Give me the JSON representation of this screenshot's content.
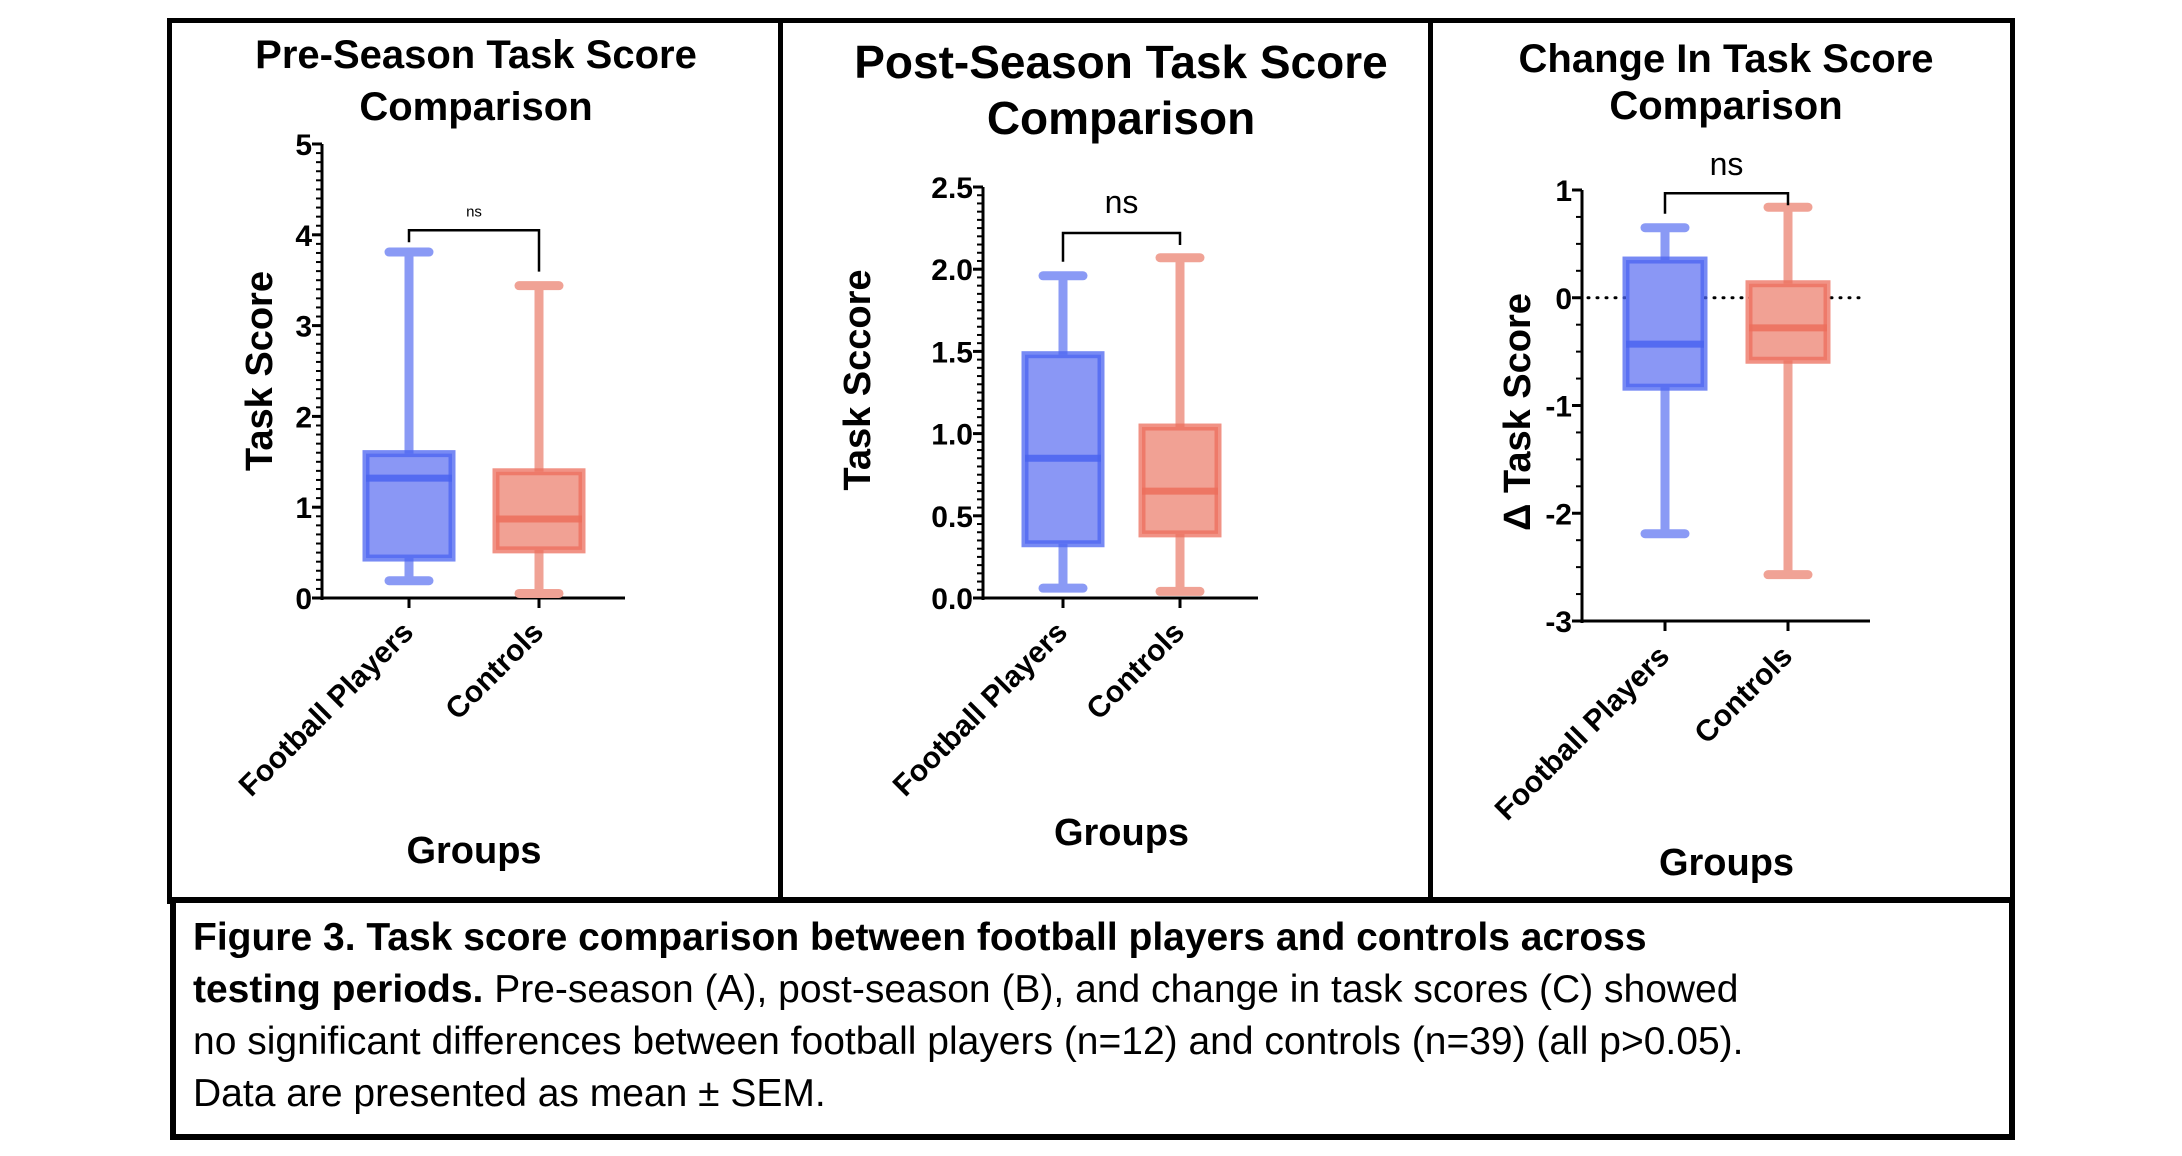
{
  "figure": {
    "caption_bold": "Figure 3. Task score comparison between football players and controls across testing periods.",
    "caption_line1": "Figure 3. Task score comparison between football players and controls across",
    "caption_line2_bold": "testing periods.",
    "caption_line2_rest": " Pre-season (A), post-season (B), and change in task scores (C) showed",
    "caption_line3": "no significant differences between football players (n=12) and controls (n=39) (all p>0.05).",
    "caption_line4": "Data are presented as mean ± SEM."
  },
  "colors": {
    "football_fill": "#8a97f5",
    "football_stroke": "#4a63f0",
    "football_whisker": "#8a9af5",
    "controls_fill": "#f1a194",
    "controls_stroke": "#ec6e5c",
    "controls_whisker": "#f0a295"
  },
  "chart_data": [
    {
      "type": "box",
      "panel": "A",
      "title_lines": [
        "Pre-Season Task Score",
        "Comparison"
      ],
      "xlabel": "Groups",
      "ylabel": "Task Score",
      "ylim": [
        0,
        5
      ],
      "yticks": [
        0,
        1,
        2,
        3,
        4,
        5
      ],
      "ytick_labels": [
        "0",
        "1",
        "2",
        "3",
        "4",
        "5"
      ],
      "minor_ticks_per_major": 10,
      "categories": [
        "Football Players",
        "Controls"
      ],
      "series": [
        {
          "name": "Football Players",
          "min": 0.19,
          "q1": 0.44,
          "median": 1.32,
          "q3": 1.59,
          "max": 3.81
        },
        {
          "name": "Controls",
          "min": 0.05,
          "q1": 0.53,
          "median": 0.87,
          "q3": 1.39,
          "max": 3.44
        }
      ],
      "significance": {
        "label": "ns",
        "bracket_y": 4.05
      },
      "reference_line": null,
      "grid": false
    },
    {
      "type": "box",
      "panel": "B",
      "title_lines": [
        "Post-Season Task Score",
        "Comparison"
      ],
      "xlabel": "Groups",
      "ylabel": "Task Sccore",
      "ylim": [
        0,
        2.5
      ],
      "yticks": [
        0,
        0.5,
        1.0,
        1.5,
        2.0,
        2.5
      ],
      "ytick_labels": [
        "0.0",
        "0.5",
        "1.0",
        "1.5",
        "2.0",
        "2.5"
      ],
      "minor_ticks_per_major": 10,
      "categories": [
        "Football Players",
        "Controls"
      ],
      "series": [
        {
          "name": "Football Players",
          "min": 0.06,
          "q1": 0.33,
          "median": 0.85,
          "q3": 1.48,
          "max": 1.96
        },
        {
          "name": "Controls",
          "min": 0.04,
          "q1": 0.39,
          "median": 0.65,
          "q3": 1.04,
          "max": 2.07
        }
      ],
      "significance": {
        "label": "ns",
        "bracket_y": 2.22
      },
      "reference_line": null,
      "grid": false
    },
    {
      "type": "box",
      "panel": "C",
      "title_lines": [
        "Change In Task Score",
        "Comparison"
      ],
      "xlabel": "Groups",
      "ylabel": "Δ Task Score",
      "ylim": [
        -3,
        1
      ],
      "yticks": [
        -3,
        -2,
        -1,
        0,
        1
      ],
      "ytick_labels": [
        "-3",
        "-2",
        "-1",
        "0",
        "1"
      ],
      "minor_ticks_per_major": 4,
      "categories": [
        "Football Players",
        "Controls"
      ],
      "series": [
        {
          "name": "Football Players",
          "min": -2.19,
          "q1": -0.83,
          "median": -0.43,
          "q3": 0.35,
          "max": 0.65
        },
        {
          "name": "Controls",
          "min": -2.57,
          "q1": -0.58,
          "median": -0.28,
          "q3": 0.13,
          "max": 0.84
        }
      ],
      "significance": {
        "label": "ns",
        "bracket_y": 0.97
      },
      "reference_line": {
        "y": 0,
        "style": "dotted"
      },
      "grid": false
    }
  ]
}
